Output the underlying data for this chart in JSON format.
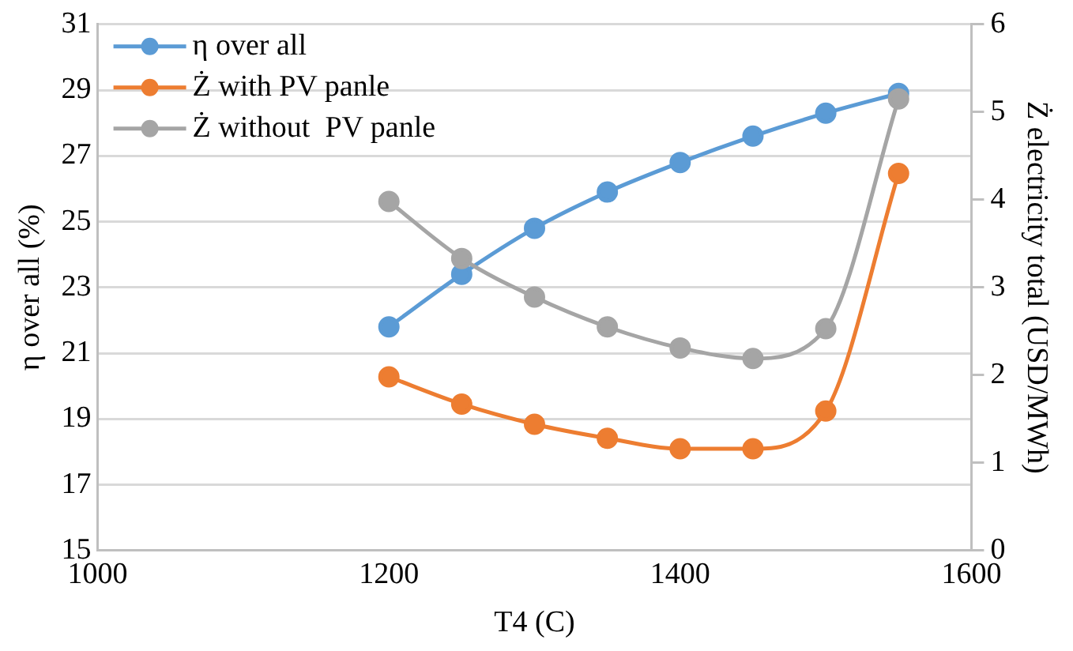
{
  "chart_data": {
    "type": "line",
    "xlabel": "T4 (C)",
    "ylabel": "η over all (%)",
    "y2label": "Ż electricity total (USD/MWh)",
    "x": [
      1200,
      1250,
      1300,
      1350,
      1400,
      1450,
      1500,
      1550
    ],
    "series": [
      {
        "name": "η over all",
        "color": "#5b9bd5",
        "values": [
          21.8,
          23.4,
          24.8,
          25.9,
          26.8,
          27.6,
          28.3,
          28.9
        ]
      },
      {
        "name": "Ż with PV panle",
        "color": "#ed7d31",
        "axis": "y2",
        "values": [
          1.98,
          1.67,
          1.44,
          1.28,
          1.16,
          1.16,
          1.59,
          4.3
        ]
      },
      {
        "name": "Ż without  PV panle",
        "color": "#a5a5a5",
        "axis": "y2",
        "values": [
          3.98,
          3.33,
          2.89,
          2.55,
          2.31,
          2.19,
          2.53,
          5.15
        ]
      }
    ],
    "xlim": [
      1000,
      1600
    ],
    "xticks": [
      1000,
      1200,
      1400,
      1600
    ],
    "ylim": [
      15,
      31
    ],
    "yticks": [
      15,
      17,
      19,
      21,
      23,
      25,
      27,
      29,
      31
    ],
    "y2lim": [
      0,
      6
    ],
    "y2ticks": [
      0,
      1,
      2,
      3,
      4,
      5,
      6
    ],
    "grid": "y",
    "legend": "top left",
    "marker": "circle",
    "line_style": "solid"
  }
}
